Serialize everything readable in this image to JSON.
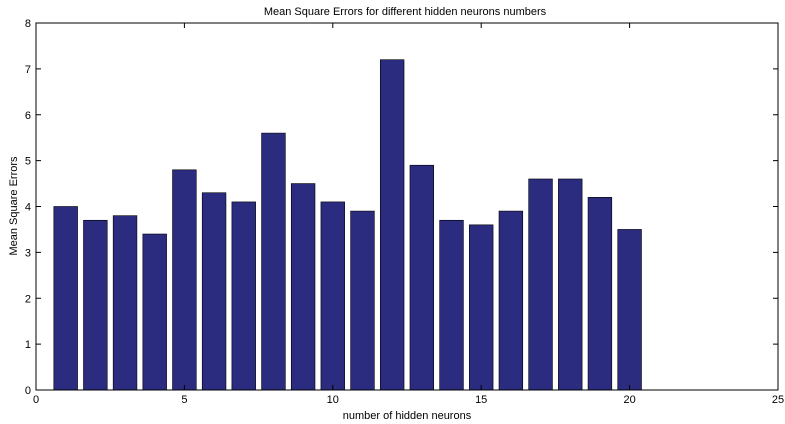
{
  "chart_data": {
    "type": "bar",
    "title": "Mean Square Errors for different hidden neurons numbers",
    "xlabel": "number of hidden neurons",
    "ylabel": "Mean Square Errors",
    "x": [
      1,
      2,
      3,
      4,
      5,
      6,
      7,
      8,
      9,
      10,
      11,
      12,
      13,
      14,
      15,
      16,
      17,
      18,
      19,
      20
    ],
    "values": [
      4.0,
      3.7,
      3.8,
      3.4,
      4.8,
      4.3,
      4.1,
      5.6,
      4.5,
      4.1,
      3.9,
      7.2,
      4.9,
      3.7,
      3.6,
      3.9,
      4.6,
      4.6,
      4.2,
      3.5
    ],
    "xlim": [
      0,
      25
    ],
    "ylim": [
      0,
      8
    ],
    "xticks": [
      0,
      5,
      10,
      15,
      20,
      25
    ],
    "yticks": [
      0,
      1,
      2,
      3,
      4,
      5,
      6,
      7,
      8
    ],
    "bar_color": "#2b2b7f",
    "grid": false
  }
}
